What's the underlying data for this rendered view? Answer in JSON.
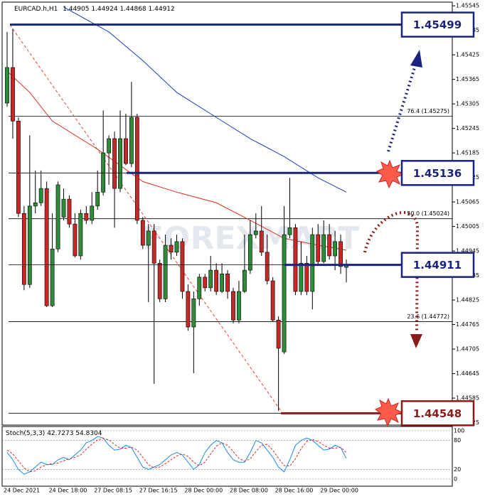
{
  "chart_data": [
    {
      "type": "candlestick",
      "title": "EURCAD.h,H1",
      "watermark": "FOREXMART",
      "up_color": "#2e8b3a",
      "down_color": "#c62828",
      "categories": [
        "24 Dec 2021",
        null,
        null,
        null,
        null,
        null,
        null,
        null,
        "24 Dec 18:00",
        null,
        null,
        null,
        null,
        null,
        null,
        null,
        "27 Dec 08:15",
        null,
        null,
        null,
        null,
        null,
        null,
        null,
        "27 Dec 16:15",
        null,
        null,
        null,
        null,
        null,
        null,
        null,
        "28 Dec 00:00",
        null,
        null,
        null,
        null,
        null,
        null,
        null,
        "28 Dec 08:00",
        null,
        null,
        null,
        null,
        null,
        null,
        null,
        "28 Dec 16:00",
        null,
        null,
        null,
        null,
        null,
        null,
        null,
        "29 Dec 00:00",
        null,
        null,
        null,
        null
      ],
      "open": [
        1.45307,
        1.45394,
        1.45263,
        1.45037,
        1.44863,
        1.45055,
        1.45063,
        1.45098,
        1.44811,
        1.4495,
        1.45028,
        1.45072,
        1.45011,
        1.44933,
        1.45037,
        1.4502,
        1.45055,
        1.45089,
        1.45185,
        1.4522,
        1.45098,
        1.4522,
        1.45159,
        1.45272,
        1.4502,
        1.44959,
        1.44994,
        1.44915,
        1.44828,
        1.44959,
        1.44942,
        1.44968,
        1.44846,
        1.44759,
        1.44828,
        1.44881,
        1.44855,
        1.44898,
        1.44846,
        1.44889,
        1.44846,
        1.44776,
        1.44846,
        1.44898,
        1.44985,
        1.44994,
        1.44942,
        1.44872,
        1.44776,
        1.44698,
        1.44985,
        1.45002,
        1.44846,
        1.44915,
        1.44846,
        1.44985,
        1.44919,
        1.44985,
        1.44933,
        1.44968,
        1.44905
      ],
      "high": [
        1.45481,
        1.45489,
        1.45272,
        1.45055,
        1.45228,
        1.45142,
        1.45142,
        1.45115,
        1.45037,
        1.45115,
        1.45098,
        1.45081,
        1.45037,
        1.45046,
        1.45055,
        1.45089,
        1.45142,
        1.45289,
        1.45228,
        1.45237,
        1.45289,
        1.45281,
        1.45359,
        1.45281,
        1.45028,
        1.45011,
        1.45011,
        1.44924,
        1.44985,
        1.44976,
        1.44985,
        1.44976,
        1.44863,
        1.44846,
        1.44889,
        1.44889,
        1.44933,
        1.44915,
        1.44915,
        1.44898,
        1.44855,
        1.44872,
        1.44985,
        1.4502,
        1.45037,
        1.45055,
        1.44985,
        1.44881,
        1.44785,
        1.45055,
        1.45124,
        1.45011,
        1.44968,
        1.44933,
        1.45002,
        1.45011,
        1.4502,
        1.45011,
        1.44994,
        1.44985,
        1.44924
      ],
      "low": [
        1.45298,
        1.4522,
        1.45028,
        1.44849,
        1.44855,
        1.45037,
        1.45055,
        1.44808,
        1.44808,
        1.44942,
        1.4502,
        1.45002,
        1.44929,
        1.44924,
        1.45011,
        1.45011,
        1.45046,
        1.45081,
        1.45107,
        1.45002,
        1.45089,
        1.45155,
        1.4515,
        1.45011,
        1.4495,
        1.4482,
        1.4462,
        1.4482,
        1.4482,
        1.44924,
        1.44933,
        1.44828,
        1.4475,
        1.44646,
        1.44811,
        1.44846,
        1.44846,
        1.44837,
        1.44842,
        1.44828,
        1.44768,
        1.44768,
        1.44842,
        1.44889,
        1.44976,
        1.44933,
        1.44863,
        1.44773,
        1.44554,
        1.44693,
        1.44976,
        1.44837,
        1.44837,
        1.44837,
        1.44802,
        1.44912,
        1.44915,
        1.44924,
        1.44898,
        1.44889,
        1.44868
      ],
      "close": [
        1.45394,
        1.45263,
        1.45037,
        1.44863,
        1.45055,
        1.45063,
        1.45098,
        1.44811,
        1.4495,
        1.45107,
        1.45072,
        1.45011,
        1.44933,
        1.45037,
        1.4502,
        1.45055,
        1.45089,
        1.45185,
        1.4522,
        1.45098,
        1.4522,
        1.45159,
        1.45272,
        1.4502,
        1.44959,
        1.44994,
        1.44915,
        1.44828,
        1.44959,
        1.44942,
        1.44968,
        1.44846,
        1.44759,
        1.44828,
        1.44881,
        1.44855,
        1.44898,
        1.44846,
        1.44889,
        1.44846,
        1.44776,
        1.44846,
        1.44898,
        1.44985,
        1.44994,
        1.44942,
        1.44872,
        1.44776,
        1.44707,
        1.44985,
        1.45002,
        1.44846,
        1.44915,
        1.44846,
        1.44985,
        1.44919,
        1.44985,
        1.44933,
        1.44968,
        1.44907,
        1.44912
      ],
      "moving_averages": [
        {
          "color": "#1f3fbf",
          "x": [
            10,
            18,
            24,
            30,
            37,
            43,
            49,
            55,
            60
          ],
          "values": [
            1.45542,
            1.45481,
            1.45411,
            1.45333,
            1.45272,
            1.4522,
            1.45176,
            1.45124,
            1.45089
          ]
        },
        {
          "color": "#d9301f",
          "x": [
            0,
            4,
            8,
            16,
            24,
            30,
            37,
            43,
            49,
            55,
            60
          ],
          "values": [
            1.45385,
            1.45333,
            1.45263,
            1.45194,
            1.45115,
            1.45089,
            1.45063,
            1.4502,
            1.44976,
            1.44959,
            1.44947
          ]
        }
      ],
      "levels": [
        {
          "value": 1.45499,
          "color": "#1a237e"
        },
        {
          "value": 1.45136,
          "color": "#1a237e"
        },
        {
          "value": 1.44911,
          "color": "#1a237e"
        },
        {
          "value": 1.44548,
          "color": "#8b1a1a"
        }
      ],
      "fibonacci": [
        {
          "label": "76.4 (1.45275)",
          "value": 1.45275
        },
        {
          "label": "50.0 (1.45024)",
          "value": 1.45024
        },
        {
          "label": "23.6 (1.44772)",
          "value": 1.44772
        }
      ],
      "ylim": [
        1.44519,
        1.45554
      ],
      "yticks": [
        1.45545,
        1.45485,
        1.45425,
        1.45365,
        1.45305,
        1.45245,
        1.45185,
        1.45125,
        1.45065,
        1.45005,
        1.44945,
        1.44885,
        1.44825,
        1.44765,
        1.44705,
        1.44645,
        1.44585,
        1.44525
      ]
    },
    {
      "type": "line",
      "title": "Stoch(5,3,3)",
      "series": [
        {
          "color": "#1e88e5",
          "values": [
            55,
            40,
            20,
            10,
            15,
            25,
            35,
            30,
            30,
            40,
            45,
            40,
            50,
            60,
            75,
            80,
            88,
            85,
            70,
            60,
            62,
            70,
            65,
            45,
            25,
            20,
            25,
            30,
            40,
            50,
            55,
            50,
            35,
            20,
            30,
            55,
            70,
            80,
            75,
            55,
            40,
            35,
            35,
            55,
            80,
            75,
            60,
            45,
            25,
            15,
            40,
            70,
            80,
            85,
            80,
            70,
            60,
            62,
            70,
            65,
            42.7273
          ]
        },
        {
          "color": "#d32f2f",
          "dashed": true,
          "values": [
            60,
            52,
            38,
            23,
            15,
            17,
            25,
            30,
            32,
            33,
            38,
            42,
            45,
            50,
            62,
            72,
            81,
            84,
            81,
            72,
            64,
            64,
            66,
            60,
            45,
            30,
            23,
            25,
            32,
            40,
            48,
            52,
            47,
            35,
            28,
            35,
            52,
            68,
            75,
            70,
            57,
            43,
            37,
            42,
            57,
            70,
            72,
            60,
            43,
            28,
            27,
            42,
            63,
            78,
            82,
            78,
            70,
            64,
            64,
            66,
            54.8304
          ]
        }
      ],
      "ylim": [
        0,
        100
      ],
      "yticks": [
        0,
        20,
        80,
        100
      ]
    }
  ]
}
